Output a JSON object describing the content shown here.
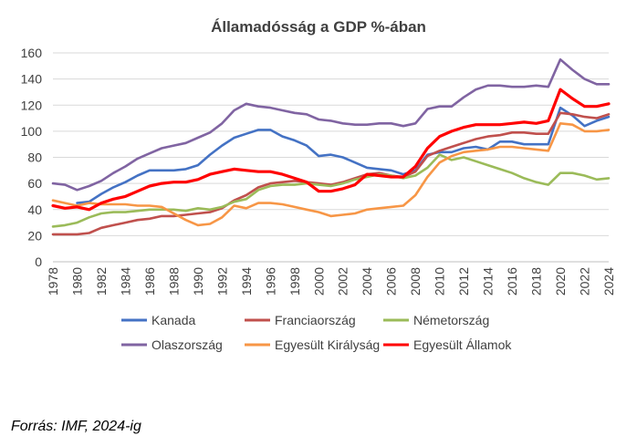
{
  "chart_data": {
    "type": "line",
    "title": "Államadósság a GDP %-ában",
    "xlabel": "",
    "ylabel": "",
    "ylim": [
      0,
      160
    ],
    "yticks": [
      0,
      20,
      40,
      60,
      80,
      100,
      120,
      140,
      160
    ],
    "xticks": [
      1978,
      1980,
      1982,
      1984,
      1986,
      1988,
      1990,
      1992,
      1994,
      1996,
      1998,
      2000,
      2002,
      2004,
      2006,
      2008,
      2010,
      2012,
      2014,
      2016,
      2018,
      2020,
      2022,
      2024
    ],
    "grid": "horizontal",
    "legend": "bottom",
    "x": [
      1978,
      1979,
      1980,
      1981,
      1982,
      1983,
      1984,
      1985,
      1986,
      1987,
      1988,
      1989,
      1990,
      1991,
      1992,
      1993,
      1994,
      1995,
      1996,
      1997,
      1998,
      1999,
      2000,
      2001,
      2002,
      2003,
      2004,
      2005,
      2006,
      2007,
      2008,
      2009,
      2010,
      2011,
      2012,
      2013,
      2014,
      2015,
      2016,
      2017,
      2018,
      2019,
      2020,
      2021,
      2022,
      2023,
      2024
    ],
    "series": [
      {
        "name": "Kanada",
        "color": "#4472c4",
        "values": [
          null,
          null,
          45,
          46,
          52,
          57,
          61,
          66,
          70,
          70,
          70,
          71,
          74,
          82,
          89,
          95,
          98,
          101,
          101,
          96,
          93,
          89,
          81,
          82,
          80,
          76,
          72,
          71,
          70,
          67,
          70,
          82,
          84,
          84,
          87,
          88,
          86,
          92,
          92,
          90,
          90,
          90,
          118,
          112,
          104,
          108,
          111
        ]
      },
      {
        "name": "Franciaország",
        "color": "#c0504d",
        "values": [
          21,
          21,
          21,
          22,
          26,
          28,
          30,
          32,
          33,
          35,
          35,
          36,
          37,
          38,
          41,
          47,
          51,
          57,
          60,
          61,
          62,
          61,
          60,
          59,
          61,
          64,
          67,
          68,
          66,
          65,
          69,
          81,
          85,
          88,
          91,
          94,
          96,
          97,
          99,
          99,
          98,
          98,
          114,
          113,
          111,
          110,
          113
        ]
      },
      {
        "name": "Németország",
        "color": "#9bbb59",
        "values": [
          27,
          28,
          30,
          34,
          37,
          38,
          38,
          39,
          40,
          40,
          40,
          39,
          41,
          40,
          42,
          46,
          48,
          55,
          58,
          59,
          59,
          60,
          59,
          58,
          60,
          63,
          65,
          67,
          66,
          64,
          66,
          72,
          82,
          78,
          80,
          77,
          74,
          71,
          68,
          64,
          61,
          59,
          68,
          68,
          66,
          63,
          64
        ]
      },
      {
        "name": "Olaszország",
        "color": "#8064a2",
        "values": [
          60,
          59,
          55,
          58,
          62,
          68,
          73,
          79,
          83,
          87,
          89,
          91,
          95,
          99,
          106,
          116,
          121,
          119,
          118,
          116,
          114,
          113,
          109,
          108,
          106,
          105,
          105,
          106,
          106,
          104,
          106,
          117,
          119,
          119,
          126,
          132,
          135,
          135,
          134,
          134,
          135,
          134,
          155,
          147,
          140,
          136,
          136
        ]
      },
      {
        "name": "Egyesült Királyság",
        "color": "#f79646",
        "values": [
          47,
          45,
          43,
          45,
          44,
          44,
          44,
          43,
          43,
          42,
          37,
          32,
          28,
          29,
          34,
          43,
          41,
          45,
          45,
          44,
          42,
          40,
          38,
          35,
          36,
          37,
          40,
          41,
          42,
          43,
          51,
          65,
          76,
          81,
          84,
          85,
          86,
          88,
          88,
          87,
          86,
          85,
          106,
          105,
          100,
          100,
          101
        ]
      },
      {
        "name": "Egyesült Államok",
        "color": "#ff0000",
        "values": [
          43,
          41,
          42,
          40,
          45,
          48,
          50,
          54,
          58,
          60,
          61,
          61,
          63,
          67,
          69,
          71,
          70,
          69,
          69,
          67,
          64,
          61,
          54,
          54,
          56,
          59,
          67,
          66,
          65,
          65,
          73,
          87,
          96,
          100,
          103,
          105,
          105,
          105,
          106,
          107,
          106,
          108,
          132,
          125,
          119,
          119,
          121
        ]
      }
    ]
  },
  "source_note": "Forrás: IMF, 2024-ig"
}
